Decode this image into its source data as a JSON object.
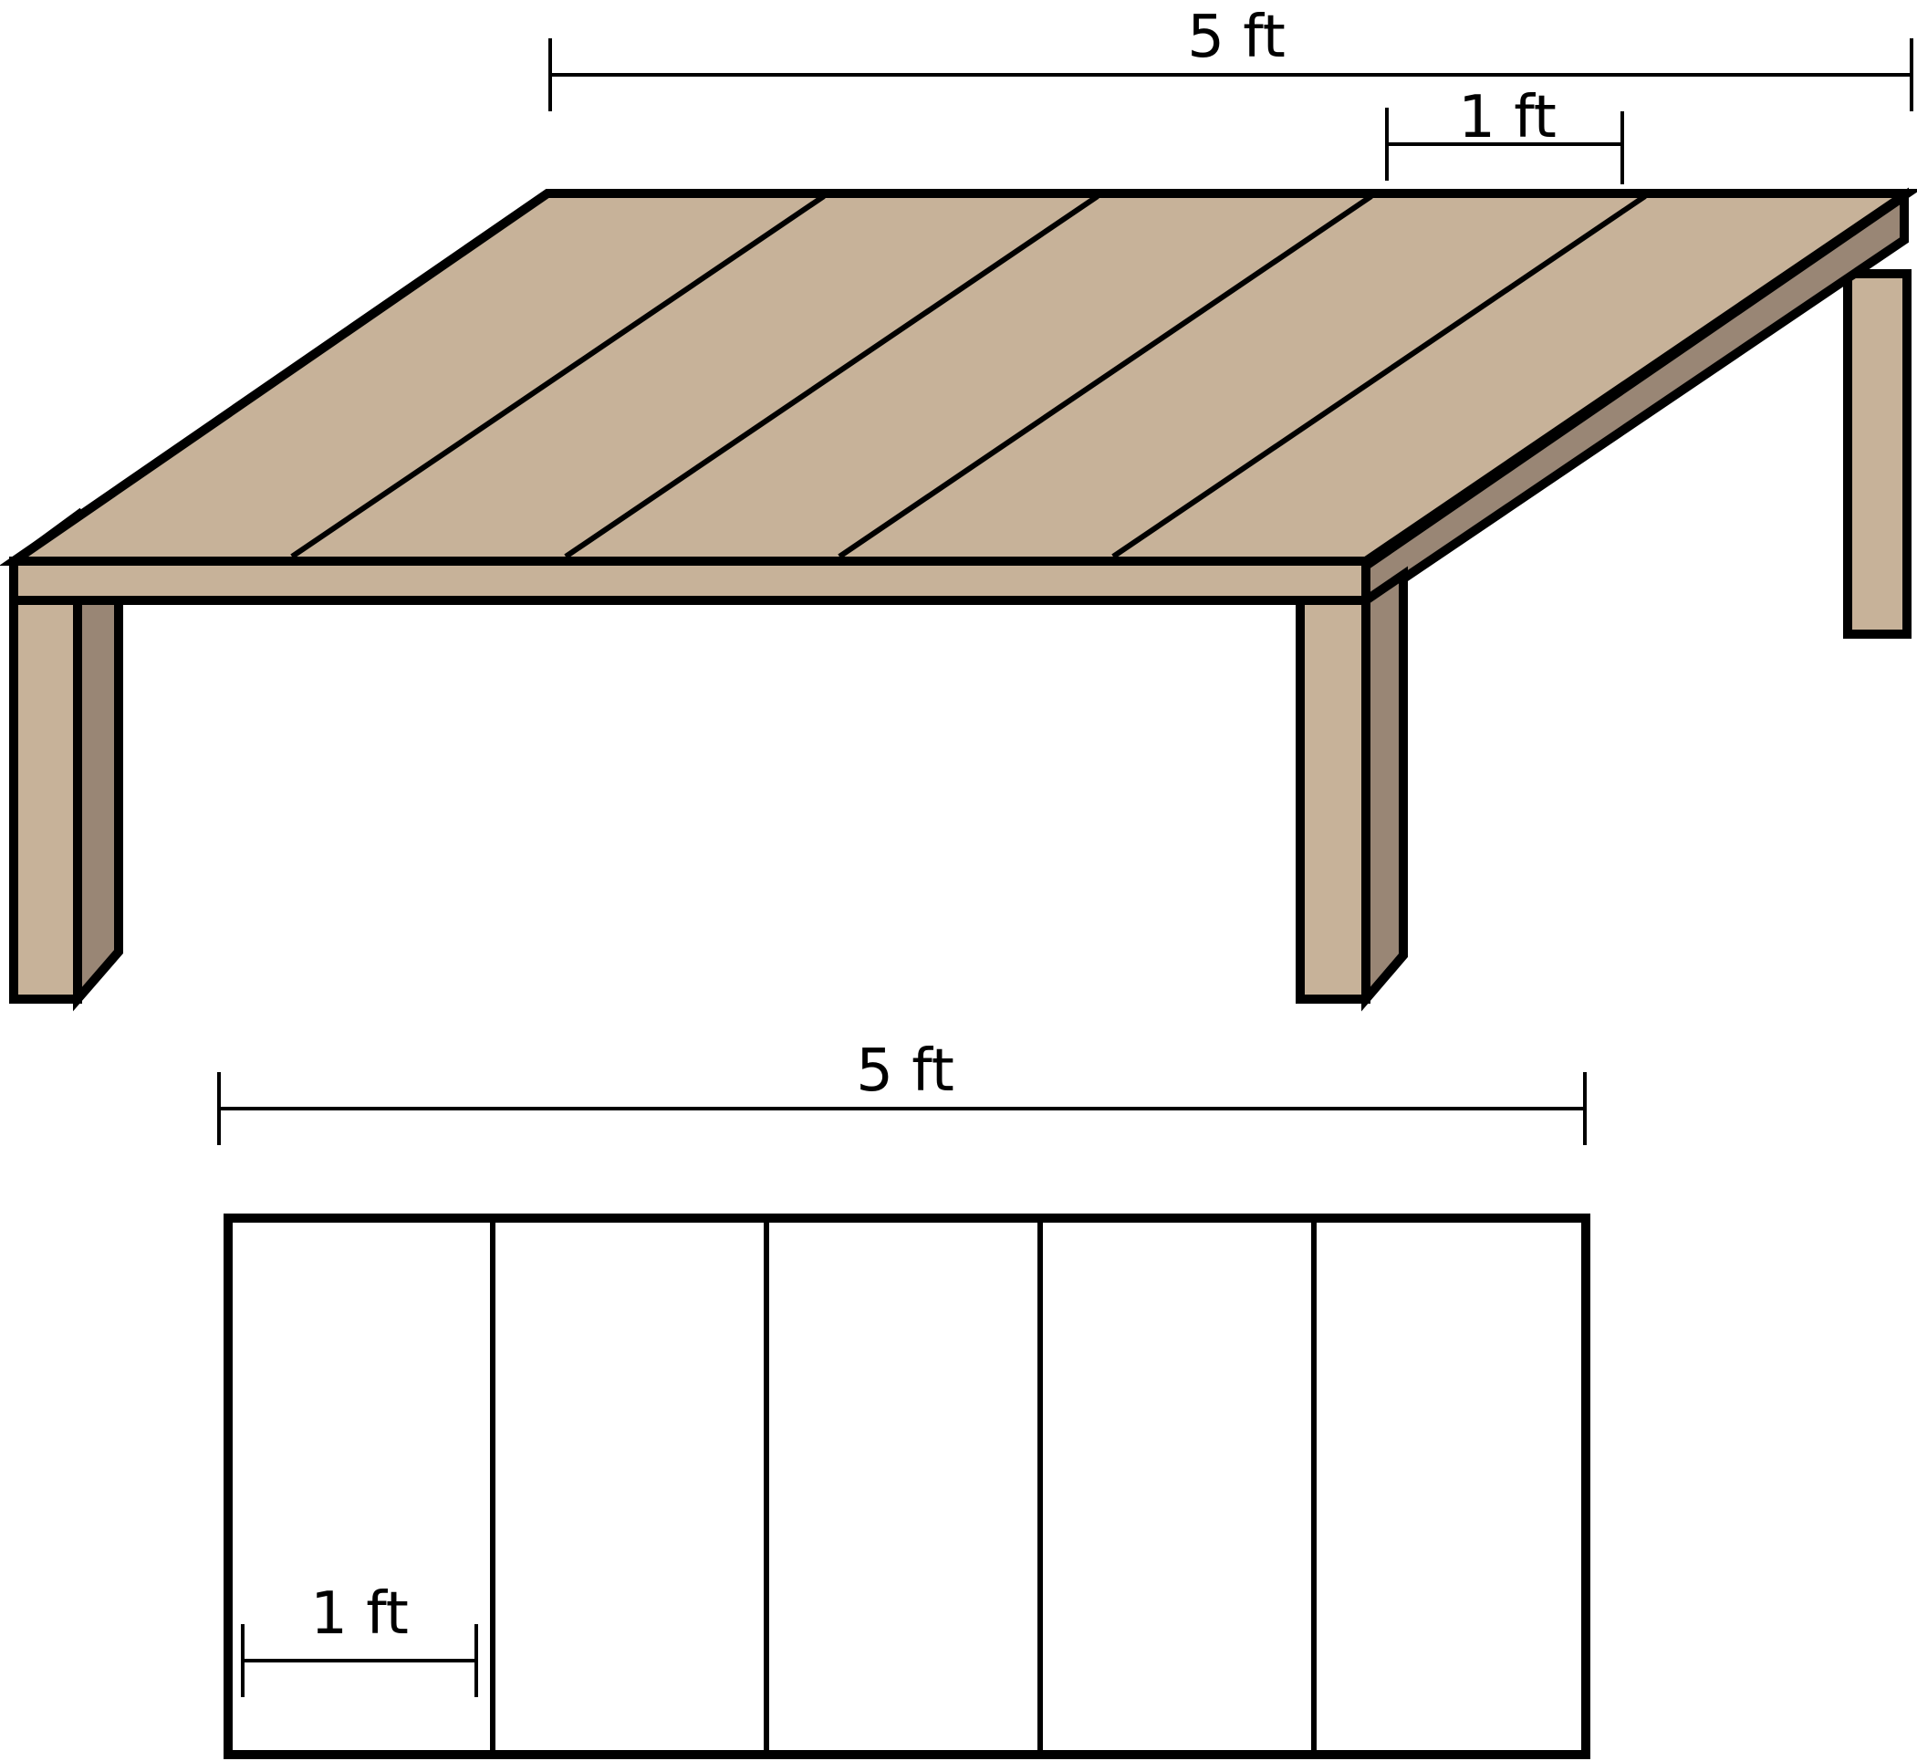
{
  "diagram": {
    "colors": {
      "wood_light": "#c7b299",
      "wood_dark": "#998675",
      "outline": "#000000",
      "background": "#ffffff"
    },
    "table": {
      "planks": 5,
      "length_label": "5 ft",
      "plank_width_label": "1 ft"
    },
    "top_view": {
      "planks": 5,
      "length_label": "5 ft",
      "plank_width_label": "1 ft"
    }
  }
}
